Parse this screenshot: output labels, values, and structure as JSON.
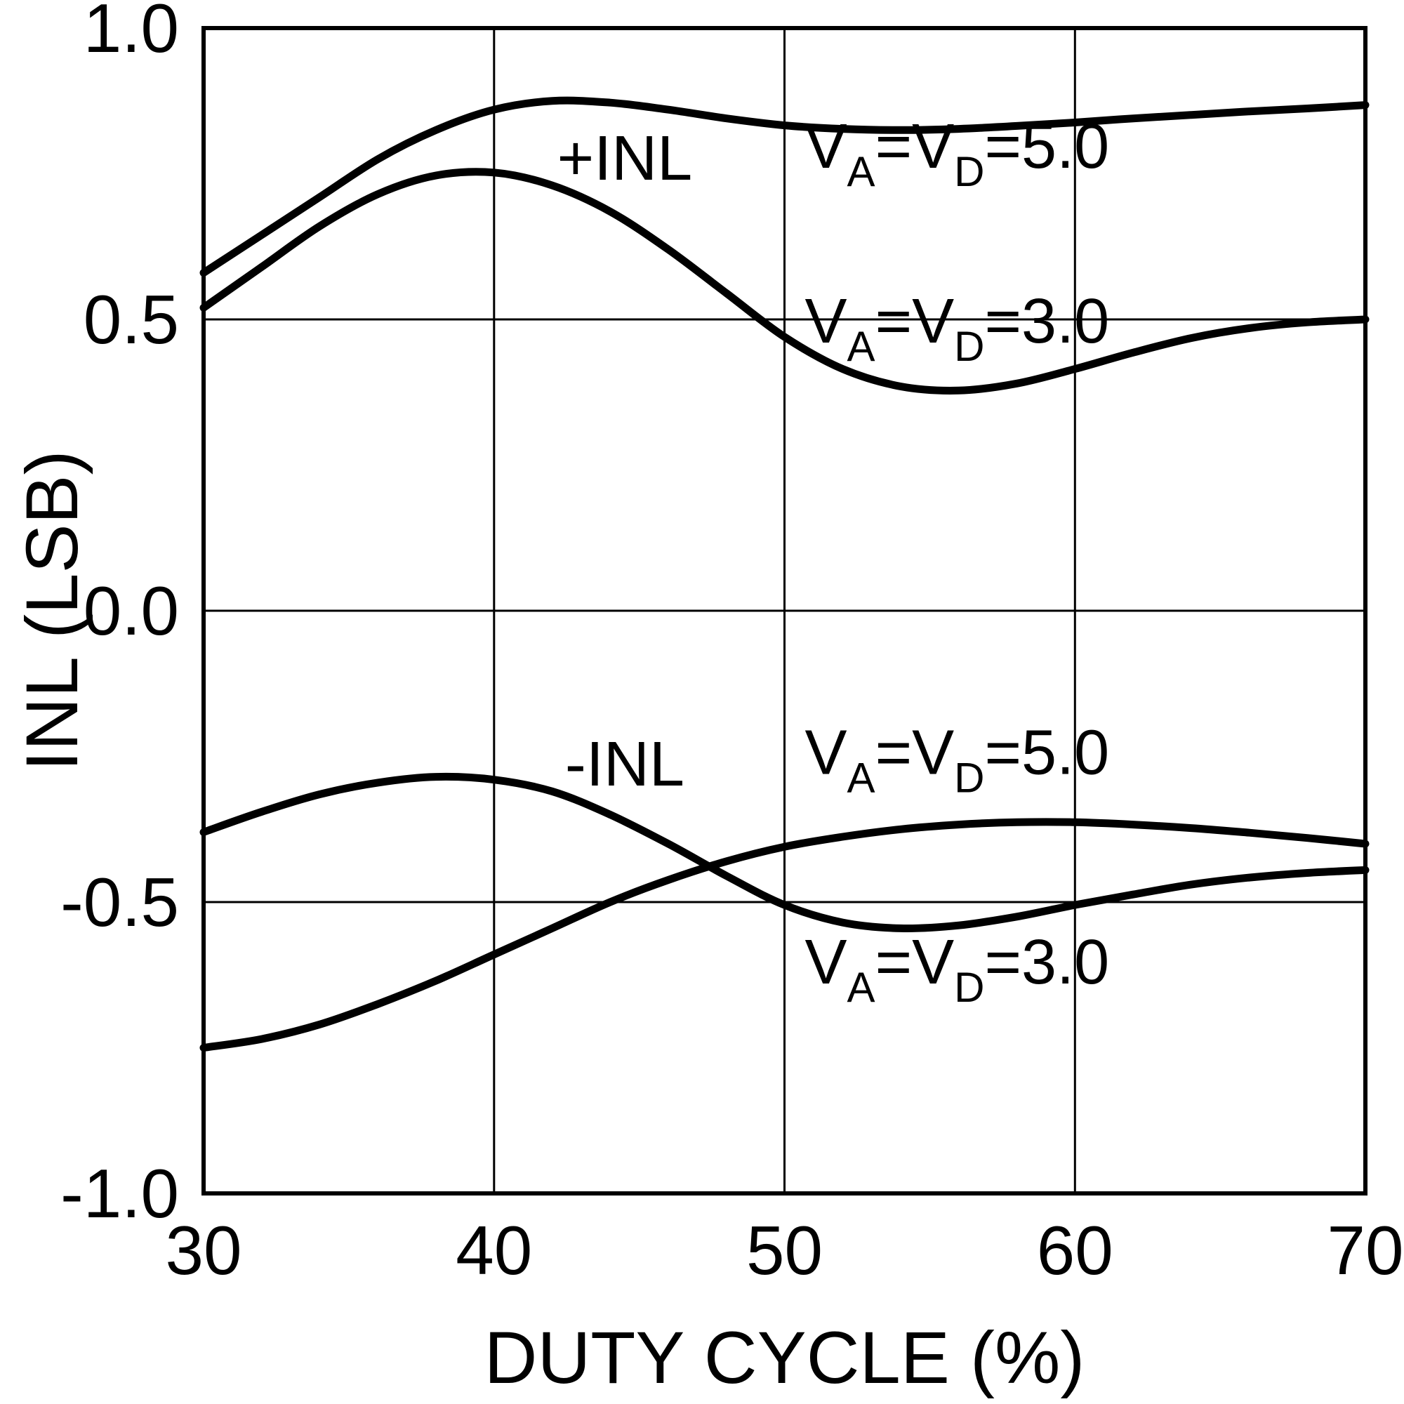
{
  "chart_data": {
    "type": "line",
    "title": "",
    "xlabel": "DUTY CYCLE (%)",
    "ylabel": "INL (LSB)",
    "xlim": [
      30,
      70
    ],
    "ylim": [
      -1.0,
      1.0
    ],
    "grid": true,
    "line_color": "#000000",
    "xticks": [
      {
        "v": 30,
        "label": "30"
      },
      {
        "v": 40,
        "label": "40"
      },
      {
        "v": 50,
        "label": "50"
      },
      {
        "v": 60,
        "label": "60"
      },
      {
        "v": 70,
        "label": "70"
      }
    ],
    "yticks": [
      {
        "v": 1.0,
        "label": "1.0"
      },
      {
        "v": 0.5,
        "label": "0.5"
      },
      {
        "v": 0.0,
        "label": "0.0"
      },
      {
        "v": -0.5,
        "label": "-0.5"
      },
      {
        "v": -1.0,
        "label": "-1.0"
      }
    ],
    "x": [
      30,
      32,
      34,
      36,
      38,
      40,
      42,
      44,
      46,
      48,
      50,
      52,
      54,
      56,
      58,
      60,
      62,
      64,
      66,
      68,
      70
    ],
    "series": [
      {
        "name": "+INL, VA=VD=5.0",
        "values": [
          0.58,
          0.645,
          0.71,
          0.775,
          0.825,
          0.86,
          0.875,
          0.872,
          0.86,
          0.845,
          0.833,
          0.827,
          0.825,
          0.827,
          0.832,
          0.838,
          0.845,
          0.851,
          0.857,
          0.862,
          0.868
        ]
      },
      {
        "name": "+INL, VA=VD=3.0",
        "values": [
          0.52,
          0.59,
          0.66,
          0.715,
          0.747,
          0.752,
          0.73,
          0.685,
          0.62,
          0.545,
          0.47,
          0.415,
          0.385,
          0.378,
          0.39,
          0.415,
          0.443,
          0.468,
          0.485,
          0.495,
          0.5
        ]
      },
      {
        "name": "-INL, VA=VD=3.0",
        "values": [
          -0.38,
          -0.345,
          -0.315,
          -0.295,
          -0.285,
          -0.29,
          -0.31,
          -0.35,
          -0.4,
          -0.455,
          -0.505,
          -0.535,
          -0.545,
          -0.54,
          -0.525,
          -0.505,
          -0.487,
          -0.47,
          -0.458,
          -0.45,
          -0.445
        ]
      },
      {
        "name": "-INL, VA=VD=5.0",
        "values": [
          -0.75,
          -0.735,
          -0.71,
          -0.675,
          -0.635,
          -0.59,
          -0.545,
          -0.5,
          -0.462,
          -0.43,
          -0.405,
          -0.388,
          -0.375,
          -0.367,
          -0.363,
          -0.363,
          -0.367,
          -0.373,
          -0.381,
          -0.39,
          -0.4
        ]
      }
    ],
    "annotations": [
      {
        "id": "plus-inl-label",
        "x": 44.5,
        "y": 0.74,
        "anchor": "middle",
        "parts": [
          {
            "t": "+INL"
          }
        ]
      },
      {
        "id": "minus-inl-label",
        "x": 44.5,
        "y": -0.3,
        "anchor": "middle",
        "parts": [
          {
            "t": "-INL"
          }
        ]
      },
      {
        "id": "top-va-vd-5",
        "x": 50.7,
        "y": 0.76,
        "anchor": "start",
        "parts": [
          {
            "t": "V"
          },
          {
            "t": "A",
            "sub": true
          },
          {
            "t": "=V"
          },
          {
            "t": "D",
            "sub": true
          },
          {
            "t": "=5.0"
          }
        ]
      },
      {
        "id": "top-va-vd-3",
        "x": 50.7,
        "y": 0.46,
        "anchor": "start",
        "parts": [
          {
            "t": "V"
          },
          {
            "t": "A",
            "sub": true
          },
          {
            "t": "=V"
          },
          {
            "t": "D",
            "sub": true
          },
          {
            "t": "=3.0"
          }
        ]
      },
      {
        "id": "bottom-va-vd-5",
        "x": 50.7,
        "y": -0.28,
        "anchor": "start",
        "parts": [
          {
            "t": "V"
          },
          {
            "t": "A",
            "sub": true
          },
          {
            "t": "=V"
          },
          {
            "t": "D",
            "sub": true
          },
          {
            "t": "=5.0"
          }
        ]
      },
      {
        "id": "bottom-va-vd-3",
        "x": 50.7,
        "y": -0.64,
        "anchor": "start",
        "parts": [
          {
            "t": "V"
          },
          {
            "t": "A",
            "sub": true
          },
          {
            "t": "=V"
          },
          {
            "t": "D",
            "sub": true
          },
          {
            "t": "=3.0"
          }
        ]
      }
    ]
  }
}
